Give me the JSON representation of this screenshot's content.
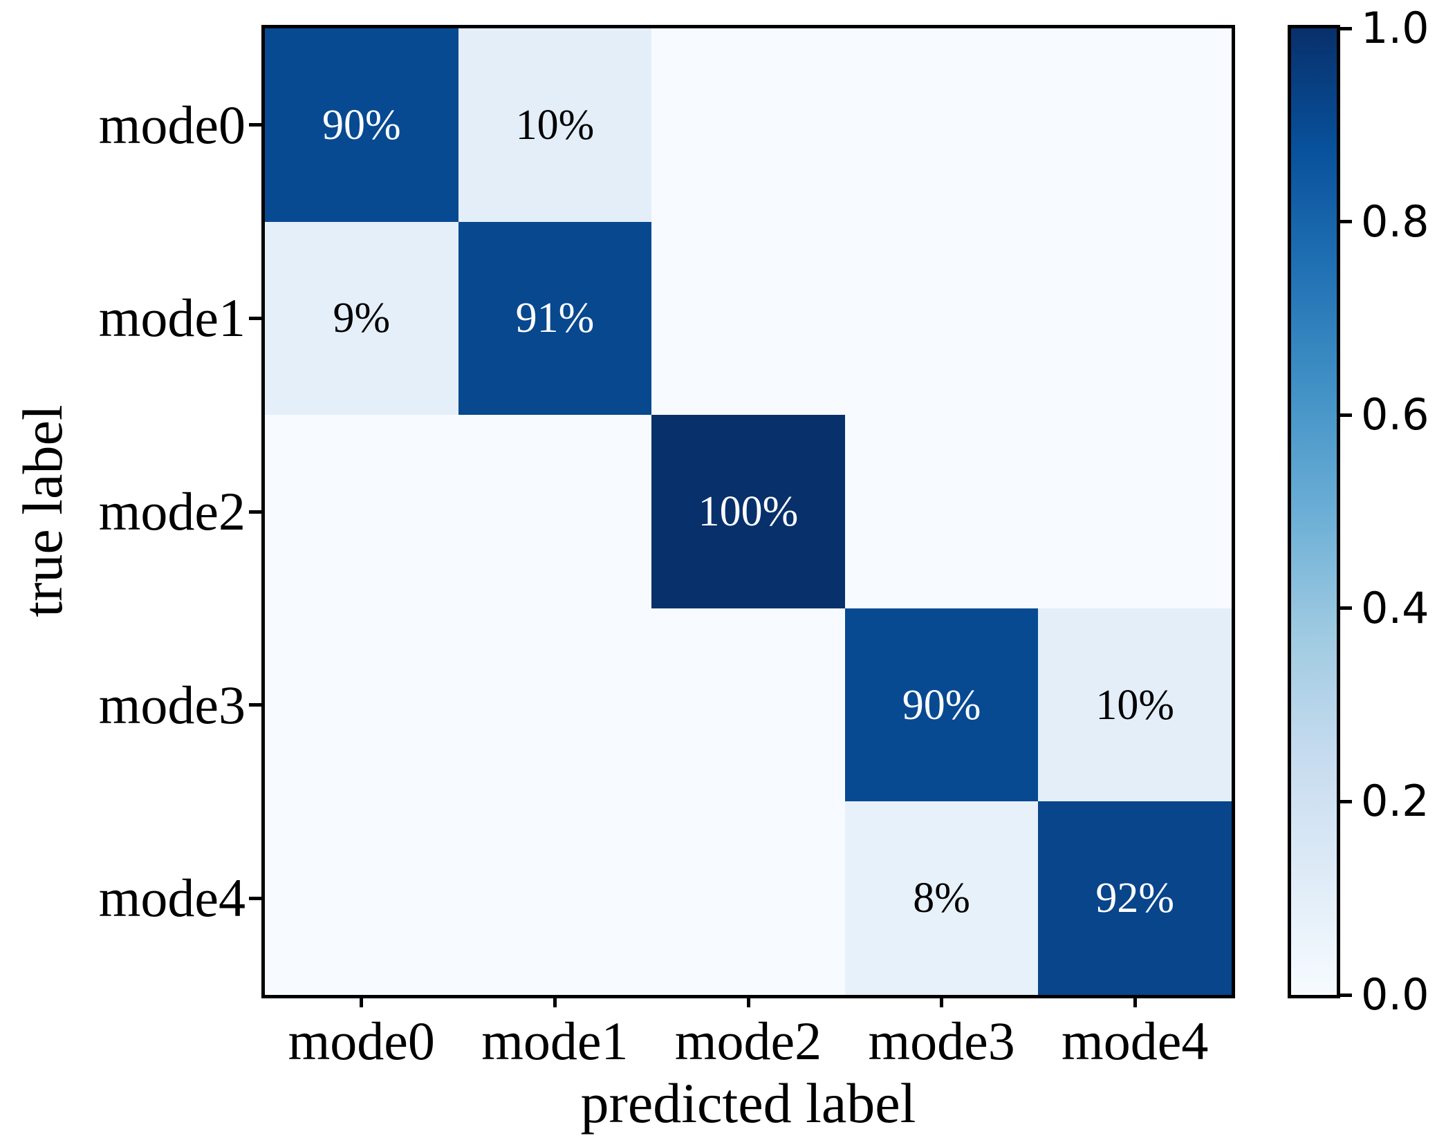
{
  "chart_data": {
    "type": "heatmap",
    "title": "",
    "xlabel": "predicted label",
    "ylabel": "true label",
    "x_categories": [
      "mode0",
      "mode1",
      "mode2",
      "mode3",
      "mode4"
    ],
    "y_categories": [
      "mode0",
      "mode1",
      "mode2",
      "mode3",
      "mode4"
    ],
    "matrix": [
      [
        0.9,
        0.1,
        0.0,
        0.0,
        0.0
      ],
      [
        0.09,
        0.91,
        0.0,
        0.0,
        0.0
      ],
      [
        0.0,
        0.0,
        1.0,
        0.0,
        0.0
      ],
      [
        0.0,
        0.0,
        0.0,
        0.9,
        0.1
      ],
      [
        0.0,
        0.0,
        0.0,
        0.08,
        0.92
      ]
    ],
    "cell_labels": [
      [
        "90%",
        "10%",
        "",
        "",
        ""
      ],
      [
        "9%",
        "91%",
        "",
        "",
        ""
      ],
      [
        "",
        "",
        "100%",
        "",
        ""
      ],
      [
        "",
        "",
        "",
        "90%",
        "10%"
      ],
      [
        "",
        "",
        "",
        "8%",
        "92%"
      ]
    ],
    "vmin": 0.0,
    "vmax": 1.0,
    "colormap": "Blues",
    "colormap_stops": [
      "#f7fbff",
      "#deebf7",
      "#c6dbef",
      "#9ecae1",
      "#6baed6",
      "#4292c6",
      "#2171b5",
      "#08519c",
      "#08306b"
    ],
    "colorbar_tick_labels": [
      "1.0",
      "0.8",
      "0.6",
      "0.4",
      "0.2",
      "0.0"
    ],
    "grid": false,
    "legend_position": "none",
    "colors": {
      "cell_text_on_dark": "#ffffff",
      "cell_text_on_light": "#000000",
      "axis": "#000000",
      "background": "#ffffff"
    }
  }
}
